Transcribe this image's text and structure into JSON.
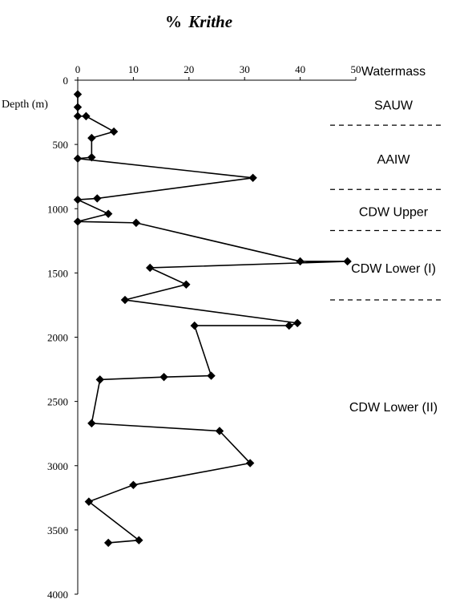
{
  "chart_data": {
    "type": "line",
    "title_prefix": "%",
    "title_italic": "Krithe",
    "ylabel": "Depth (m)",
    "xlim": [
      0,
      50
    ],
    "ylim": [
      0,
      4000
    ],
    "y_inverted": true,
    "x_ticks": [
      "0",
      "10",
      "20",
      "30",
      "40",
      "50"
    ],
    "y_ticks": [
      "0",
      "500",
      "1000",
      "1500",
      "2000",
      "2500",
      "3000",
      "3500",
      "4000"
    ],
    "grid": false,
    "legend": "none",
    "marker": "diamond",
    "series_color": "#000000",
    "series": [
      {
        "points": [
          {
            "x": 0,
            "y": 110
          },
          {
            "x": 0,
            "y": 210
          },
          {
            "x": 0,
            "y": 280
          },
          {
            "x": 1.5,
            "y": 280
          },
          {
            "x": 6.5,
            "y": 400
          },
          {
            "x": 2.5,
            "y": 450
          },
          {
            "x": 2.5,
            "y": 600
          },
          {
            "x": 0,
            "y": 610
          },
          {
            "x": 31.5,
            "y": 760
          },
          {
            "x": 3.5,
            "y": 920
          },
          {
            "x": 0,
            "y": 930
          },
          {
            "x": 5.5,
            "y": 1040
          },
          {
            "x": 0,
            "y": 1100
          },
          {
            "x": 10.5,
            "y": 1110
          },
          {
            "x": 40,
            "y": 1410
          },
          {
            "x": 48.5,
            "y": 1410
          },
          {
            "x": 13,
            "y": 1460
          },
          {
            "x": 19.5,
            "y": 1590
          },
          {
            "x": 8.5,
            "y": 1710
          },
          {
            "x": 39.5,
            "y": 1890
          },
          {
            "x": 38,
            "y": 1910
          },
          {
            "x": 21,
            "y": 1910
          },
          {
            "x": 24,
            "y": 2300
          },
          {
            "x": 15.5,
            "y": 2310
          },
          {
            "x": 4,
            "y": 2330
          },
          {
            "x": 2.5,
            "y": 2670
          },
          {
            "x": 25.5,
            "y": 2730
          },
          {
            "x": 31,
            "y": 2980
          },
          {
            "x": 10,
            "y": 3150
          },
          {
            "x": 2,
            "y": 3280
          },
          {
            "x": 11,
            "y": 3580
          },
          {
            "x": 5.5,
            "y": 3600
          }
        ]
      }
    ],
    "watermass": {
      "header": "Watermass",
      "labels": [
        {
          "name": "SAUW",
          "depth": 190
        },
        {
          "name": "AAIW",
          "depth": 610
        },
        {
          "name": "CDW Upper",
          "depth": 1020
        },
        {
          "name": "CDW Lower (I)",
          "depth": 1460
        },
        {
          "name": "CDW Lower (II)",
          "depth": 2540
        }
      ],
      "boundaries": [
        350,
        850,
        1170,
        1710
      ]
    }
  }
}
